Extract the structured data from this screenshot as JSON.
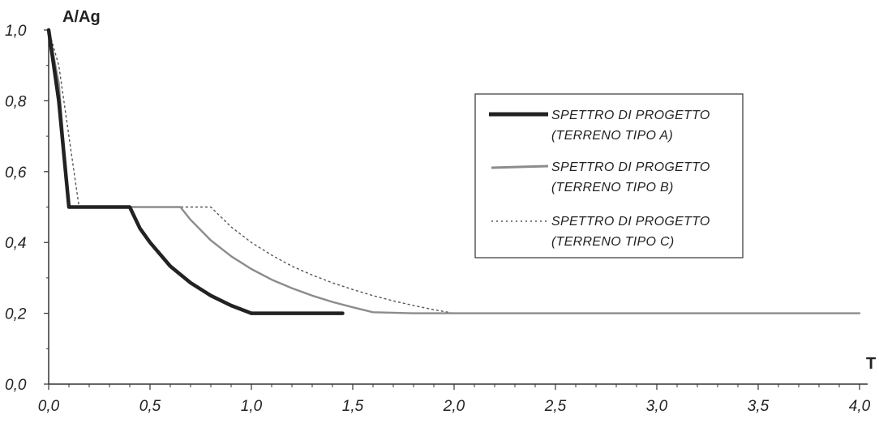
{
  "chart_data": {
    "type": "line",
    "ylabel": "A/Ag",
    "xlabel": "T",
    "xlim": [
      0,
      4.0
    ],
    "ylim": [
      0,
      1.0
    ],
    "x_ticks": [
      "0,0",
      "0,5",
      "1,0",
      "1,5",
      "2,0",
      "2,5",
      "3,0",
      "3,5",
      "4,0"
    ],
    "y_ticks": [
      "0,0",
      "0,2",
      "0,4",
      "0,6",
      "0,8",
      "1,0"
    ],
    "grid": false,
    "legend_position": "right",
    "series": [
      {
        "name_line1": "SPETTRO DI PROGETTO",
        "name_line2": "(TERRENO TIPO A)",
        "color": "#222222",
        "style": "solid-thick",
        "x": [
          0.0,
          0.05,
          0.1,
          0.15,
          0.2,
          0.3,
          0.4,
          0.45,
          0.5,
          0.6,
          0.7,
          0.8,
          0.9,
          1.0,
          1.1,
          1.2,
          1.3,
          1.45
        ],
        "y": [
          1.0,
          0.8,
          0.5,
          0.5,
          0.5,
          0.5,
          0.5,
          0.44,
          0.4,
          0.333,
          0.286,
          0.25,
          0.222,
          0.2,
          0.2,
          0.2,
          0.2,
          0.2
        ]
      },
      {
        "name_line1": "SPETTRO DI PROGETTO",
        "name_line2": "(TERRENO TIPO B)",
        "color": "#8c8c8c",
        "style": "solid-medium",
        "x": [
          0.0,
          0.05,
          0.1,
          0.15,
          0.2,
          0.3,
          0.4,
          0.5,
          0.6,
          0.65,
          0.7,
          0.8,
          0.9,
          1.0,
          1.1,
          1.2,
          1.3,
          1.4,
          1.5,
          1.6,
          1.8,
          2.0,
          2.5,
          3.0,
          3.5,
          4.0
        ],
        "y": [
          1.0,
          0.85,
          0.5,
          0.5,
          0.5,
          0.5,
          0.5,
          0.5,
          0.5,
          0.5,
          0.464,
          0.406,
          0.361,
          0.325,
          0.295,
          0.271,
          0.25,
          0.232,
          0.217,
          0.203,
          0.2,
          0.2,
          0.2,
          0.2,
          0.2,
          0.2
        ]
      },
      {
        "name_line1": "SPETTRO DI PROGETTO",
        "name_line2": "(TERRENO TIPO C)",
        "color": "#555555",
        "style": "dotted",
        "x": [
          0.0,
          0.05,
          0.1,
          0.15,
          0.2,
          0.4,
          0.6,
          0.8,
          0.9,
          1.0,
          1.1,
          1.2,
          1.3,
          1.4,
          1.5,
          1.6,
          1.7,
          1.8,
          1.9,
          2.0,
          2.5,
          3.0,
          3.5,
          4.0
        ],
        "y": [
          1.0,
          0.9,
          0.7,
          0.5,
          0.5,
          0.5,
          0.5,
          0.5,
          0.444,
          0.4,
          0.364,
          0.333,
          0.308,
          0.286,
          0.267,
          0.25,
          0.235,
          0.222,
          0.21,
          0.2,
          0.2,
          0.2,
          0.2,
          0.2
        ]
      }
    ]
  }
}
